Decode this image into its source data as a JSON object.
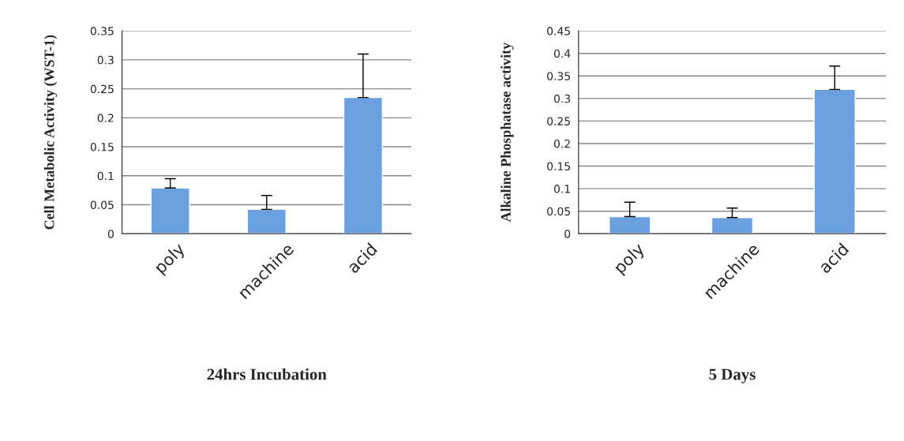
{
  "chart_data": [
    {
      "type": "bar",
      "xlabel": "24hrs Incubation",
      "ylabel": "Cell Metabolic Activity (WST-1)",
      "categories": [
        "poly",
        "machine",
        "acid"
      ],
      "values": [
        0.079,
        0.042,
        0.235
      ],
      "errors": [
        [
          0.079,
          0.095
        ],
        [
          0.042,
          0.066
        ],
        [
          0.235,
          0.31
        ]
      ],
      "color": "#6a9fe0",
      "ylim": [
        0,
        0.35
      ],
      "yticks": [
        0,
        0.05,
        0.1,
        0.15,
        0.2,
        0.25,
        0.3,
        0.35
      ],
      "grid": "y"
    },
    {
      "type": "bar",
      "xlabel": "5 Days",
      "ylabel": "Alkaline Phosphatase activity",
      "categories": [
        "poly",
        "machine",
        "acid"
      ],
      "values": [
        0.038,
        0.036,
        0.32
      ],
      "errors": [
        [
          0.038,
          0.07
        ],
        [
          0.036,
          0.057
        ],
        [
          0.32,
          0.372
        ]
      ],
      "color": "#6a9fe0",
      "ylim": [
        0,
        0.45
      ],
      "yticks": [
        0,
        0.05,
        0.1,
        0.15,
        0.2,
        0.25,
        0.3,
        0.35,
        0.4,
        0.45
      ],
      "grid": "y"
    }
  ]
}
